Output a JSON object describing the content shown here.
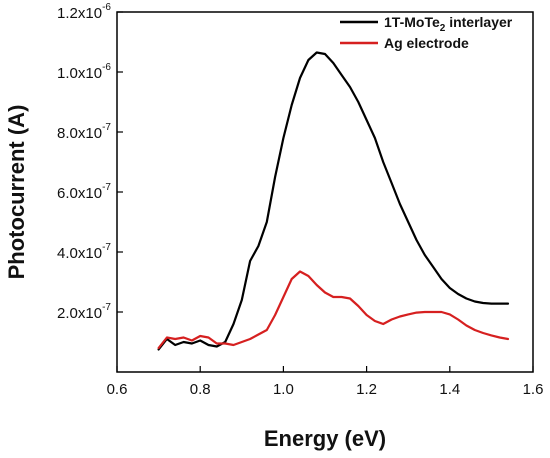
{
  "chart_data": {
    "type": "line",
    "xlabel": "Energy (eV)",
    "ylabel": "Photocurrent (A)",
    "xlim": [
      0.6,
      1.6
    ],
    "ylim": [
      0.0,
      1.2e-06
    ],
    "x_ticks": [
      {
        "value": 0.6,
        "label": "0.6"
      },
      {
        "value": 0.8,
        "label": "0.8"
      },
      {
        "value": 1.0,
        "label": "1.0"
      },
      {
        "value": 1.2,
        "label": "1.2"
      },
      {
        "value": 1.4,
        "label": "1.4"
      },
      {
        "value": 1.6,
        "label": "1.6"
      }
    ],
    "y_ticks": [
      {
        "value": 2e-07,
        "mantissa": "2.0x10",
        "exp": "-7"
      },
      {
        "value": 4e-07,
        "mantissa": "4.0x10",
        "exp": "-7"
      },
      {
        "value": 6e-07,
        "mantissa": "6.0x10",
        "exp": "-7"
      },
      {
        "value": 8e-07,
        "mantissa": "8.0x10",
        "exp": "-7"
      },
      {
        "value": 1e-06,
        "mantissa": "1.0x10",
        "exp": "-6"
      },
      {
        "value": 1.2e-06,
        "mantissa": "1.2x10",
        "exp": "-6"
      }
    ],
    "legend_position": "top-right",
    "series": [
      {
        "name": "1T-MoTe2 interlayer",
        "legend_main": "1T-MoTe",
        "legend_sub": "2",
        "legend_rest": " interlayer",
        "color": "#000000",
        "x": [
          0.7,
          0.72,
          0.74,
          0.76,
          0.78,
          0.8,
          0.82,
          0.84,
          0.86,
          0.88,
          0.9,
          0.92,
          0.94,
          0.96,
          0.98,
          1.0,
          1.02,
          1.04,
          1.06,
          1.08,
          1.1,
          1.12,
          1.14,
          1.16,
          1.18,
          1.2,
          1.22,
          1.24,
          1.26,
          1.28,
          1.3,
          1.32,
          1.34,
          1.36,
          1.38,
          1.4,
          1.42,
          1.44,
          1.46,
          1.48,
          1.5,
          1.52,
          1.54
        ],
        "y": [
          7.5e-08,
          1.1e-07,
          9e-08,
          1e-07,
          9.5e-08,
          1.05e-07,
          9e-08,
          8.5e-08,
          1e-07,
          1.6e-07,
          2.4e-07,
          3.7e-07,
          4.2e-07,
          5e-07,
          6.5e-07,
          7.8e-07,
          8.9e-07,
          9.8e-07,
          1.04e-06,
          1.065e-06,
          1.06e-06,
          1.03e-06,
          9.9e-07,
          9.5e-07,
          9e-07,
          8.4e-07,
          7.8e-07,
          7e-07,
          6.3e-07,
          5.6e-07,
          5e-07,
          4.4e-07,
          3.9e-07,
          3.5e-07,
          3.1e-07,
          2.8e-07,
          2.6e-07,
          2.45e-07,
          2.35e-07,
          2.3e-07,
          2.28e-07,
          2.28e-07,
          2.28e-07
        ]
      },
      {
        "name": "Ag electrode",
        "legend_main": "Ag electrode",
        "legend_sub": "",
        "legend_rest": "",
        "color": "#d62020",
        "x": [
          0.7,
          0.72,
          0.74,
          0.76,
          0.78,
          0.8,
          0.82,
          0.84,
          0.86,
          0.88,
          0.9,
          0.92,
          0.94,
          0.96,
          0.98,
          1.0,
          1.02,
          1.04,
          1.06,
          1.08,
          1.1,
          1.12,
          1.14,
          1.16,
          1.18,
          1.2,
          1.22,
          1.24,
          1.26,
          1.28,
          1.3,
          1.32,
          1.34,
          1.36,
          1.38,
          1.4,
          1.42,
          1.44,
          1.46,
          1.48,
          1.5,
          1.52,
          1.54
        ],
        "y": [
          8e-08,
          1.15e-07,
          1.1e-07,
          1.15e-07,
          1.05e-07,
          1.2e-07,
          1.15e-07,
          9.5e-08,
          9.5e-08,
          9e-08,
          1e-07,
          1.1e-07,
          1.25e-07,
          1.4e-07,
          1.9e-07,
          2.5e-07,
          3.1e-07,
          3.35e-07,
          3.2e-07,
          2.9e-07,
          2.65e-07,
          2.5e-07,
          2.5e-07,
          2.45e-07,
          2.2e-07,
          1.9e-07,
          1.7e-07,
          1.6e-07,
          1.75e-07,
          1.85e-07,
          1.92e-07,
          1.98e-07,
          2e-07,
          2e-07,
          2e-07,
          1.92e-07,
          1.75e-07,
          1.55e-07,
          1.4e-07,
          1.3e-07,
          1.22e-07,
          1.15e-07,
          1.1e-07
        ]
      }
    ]
  }
}
